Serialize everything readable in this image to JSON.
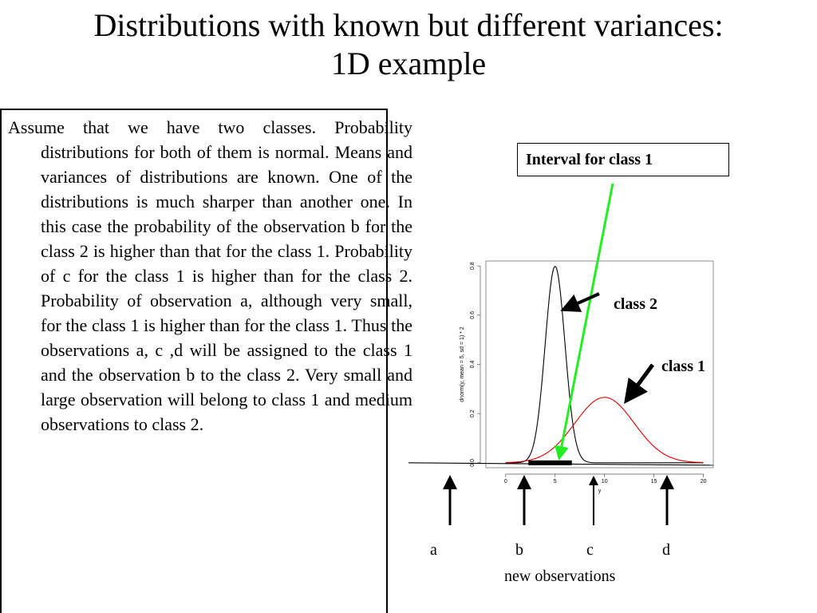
{
  "slide": {
    "title_line1": "Distributions with known but different variances:",
    "title_line2": "1D example",
    "body_text": "Assume that we have two classes. Probability distributions for both of them is normal. Means and variances of distributions are known. One of the distributions is much sharper than another one. In this case the probability of the observation b for the class 2 is higher than that for the class 1. Probability of c for the class 1 is higher than for the class 2. Probability of observation a, although very small, for the class 1 is higher than for the class 1. Thus the observations a, c ,d will be assigned to the class 1 and  the observation b to the class 2. Very small and large observation will belong to class 1 and medium observations to class 2."
  },
  "annotations": {
    "interval_label": "Interval for class 1",
    "class2_label": "class 2",
    "class1_label": "class 1",
    "obs_a": "a",
    "obs_b": "b",
    "obs_c": "c",
    "obs_d": "d",
    "observations_caption": "new observations"
  },
  "colors": {
    "class2_curve": "#000000",
    "class1_curve": "#e00000",
    "interval_arrow": "#22ee22"
  },
  "chart_data": {
    "type": "line",
    "xlabel": "y",
    "ylabel": "dnorm(y, mean = 5, sd = 1) * 2",
    "xlim": [
      -2,
      21
    ],
    "ylim": [
      -0.02,
      0.82
    ],
    "x_ticks": [
      0,
      5,
      10,
      15,
      20
    ],
    "y_ticks": [
      0.0,
      0.2,
      0.4,
      0.6,
      0.8
    ],
    "series": [
      {
        "name": "class 2",
        "mean": 5,
        "sd": 1,
        "scale": 2,
        "x_range": [
          0,
          20
        ],
        "color": "#000000"
      },
      {
        "name": "class 1",
        "mean": 10,
        "sd": 3,
        "scale": 2,
        "x_range": [
          0,
          20
        ],
        "color": "#e00000"
      }
    ],
    "class1_interval_highlight": [
      2.3,
      6.7
    ],
    "observations": [
      {
        "label": "a",
        "x": -4.5
      },
      {
        "label": "b",
        "x": 2.7
      },
      {
        "label": "c",
        "x": 9.5
      },
      {
        "label": "d",
        "x": 16.5
      }
    ]
  }
}
